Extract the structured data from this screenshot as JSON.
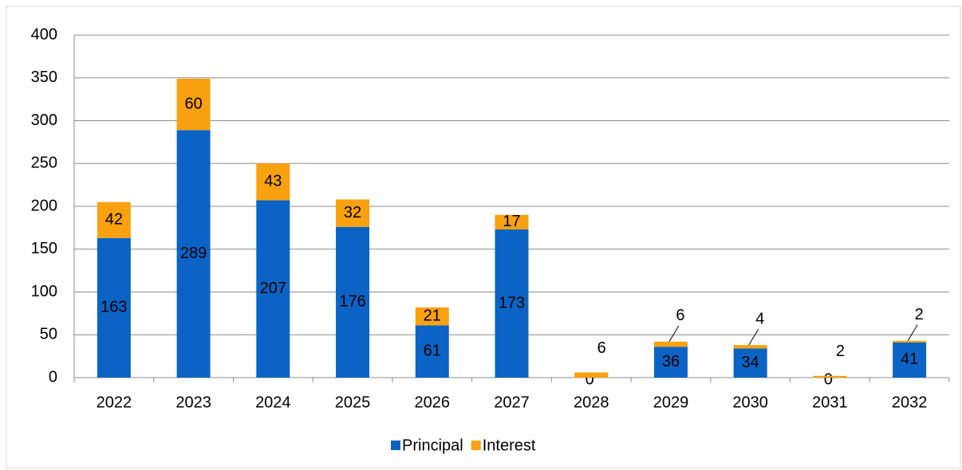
{
  "chart_data": {
    "type": "stacked_bar",
    "categories": [
      "2022",
      "2023",
      "2024",
      "2025",
      "2026",
      "2027",
      "2028",
      "2029",
      "2030",
      "2031",
      "2032"
    ],
    "series": [
      {
        "name": "Principal",
        "color": "#0b63c5",
        "values": [
          163,
          289,
          207,
          176,
          61,
          173,
          0,
          36,
          34,
          0,
          41
        ]
      },
      {
        "name": "Interest",
        "color": "#f9a10f",
        "values": [
          42,
          60,
          43,
          32,
          21,
          17,
          6,
          6,
          4,
          2,
          2
        ]
      }
    ],
    "ylim": [
      0,
      400
    ],
    "yticks": [
      0,
      50,
      100,
      150,
      200,
      250,
      300,
      350,
      400
    ],
    "grid": true,
    "legend": "bottom"
  }
}
